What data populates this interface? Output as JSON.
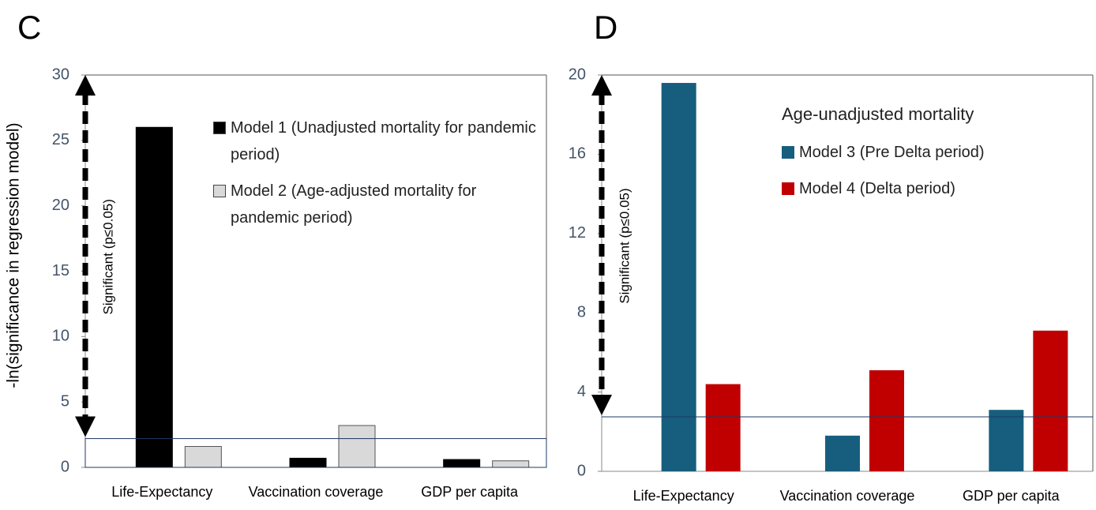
{
  "chart_data": [
    {
      "type": "bar",
      "panel": "C",
      "ylabel": "-ln(significance in regression model)",
      "annotation": "Significant (p≤0.05)",
      "categories": [
        "Life-Expectancy",
        "Vaccination coverage",
        "GDP per capita"
      ],
      "series": [
        {
          "name": "Model 1 (Unadjusted mortality for pandemic period)",
          "color": "#000000",
          "values": [
            26,
            0.7,
            0.6
          ]
        },
        {
          "name": "Model 2 (Age-adjusted mortality for pandemic period)",
          "color": "#d9d9d9",
          "values": [
            1.6,
            3.2,
            0.5
          ]
        }
      ],
      "ylim": [
        0,
        30
      ],
      "yticks": [
        0,
        5,
        10,
        15,
        20,
        25,
        30
      ],
      "threshold": 2.2
    },
    {
      "type": "bar",
      "panel": "D",
      "legend_title": "Age-unadjusted mortality",
      "annotation": "Significant (p≤0.05)",
      "categories": [
        "Life-Expectancy",
        "Vaccination coverage",
        "GDP per capita"
      ],
      "series": [
        {
          "name": "Model 3 (Pre Delta period)",
          "color": "#175e7e",
          "values": [
            19.6,
            1.8,
            3.1
          ]
        },
        {
          "name": "Model 4 (Delta period)",
          "color": "#c00000",
          "values": [
            4.4,
            5.1,
            7.1
          ]
        }
      ],
      "ylim": [
        0,
        20
      ],
      "yticks": [
        0,
        4,
        8,
        12,
        16,
        20
      ],
      "threshold": 2.75
    }
  ]
}
